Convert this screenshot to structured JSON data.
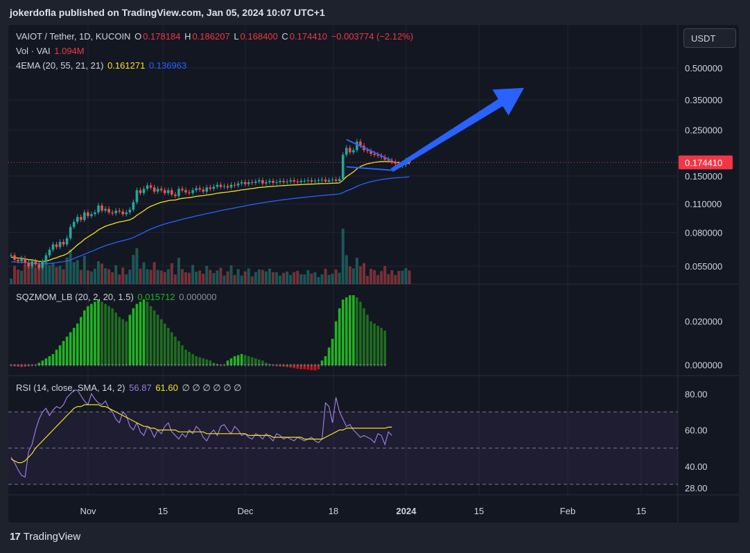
{
  "header": {
    "publisher_line": "jokerdofla published on TradingView.com, Jan 05, 2024 10:07 UTC+1"
  },
  "legend": {
    "symbol": "VAIOT / Tether, 1D, KUCOIN",
    "o_label": "O",
    "o_value": "0.178184",
    "h_label": "H",
    "h_value": "0.186207",
    "l_label": "L",
    "l_value": "0.168400",
    "c_label": "C",
    "c_value": "0.174410",
    "change": "−0.003774 (−2.12%)",
    "vol_label": "Vol · VAI",
    "vol_value": "1.094M",
    "ema_label": "4EMA (20, 55, 21, 21)",
    "ema_value_1": "0.161271",
    "ema_value_2": "0.136963",
    "sqz_label": "SQZMOM_LB (20, 2, 20, 1.5)",
    "sqz_value_1": "0.015712",
    "sqz_value_2": "0.000000",
    "rsi_label": "RSI (14, close, SMA, 14, 2)",
    "rsi_value_1": "56.87",
    "rsi_value_2": "61.60",
    "rsi_nulls": "∅ ∅ ∅ ∅ ∅ ∅"
  },
  "toolbar": {
    "currency": "USDT"
  },
  "footer": {
    "logo_mark": "17",
    "brand": "TradingView"
  },
  "colors": {
    "up": "#26a69a",
    "down": "#ef5350",
    "ema_fast": "#f7e31c",
    "ema_slow": "#2962ff",
    "sqz_green": "#1fb520",
    "sqz_dark_green": "#1f6e1f",
    "sqz_red": "#c61616",
    "rsi": "#9b7cdc",
    "rsi_ma": "#f7e31c",
    "arrow": "#2962ff",
    "last_price": "#f23645"
  },
  "chart_data": [
    {
      "type": "candlestick",
      "pane": "price",
      "scale": "log",
      "ylim": [
        0.045,
        0.62
      ],
      "y_ticks": [
        "0.500000",
        "0.350000",
        "0.250000",
        "0.150000",
        "0.110000",
        "0.080000",
        "0.055000"
      ],
      "y_tick_values": [
        0.5,
        0.35,
        0.25,
        0.15,
        0.11,
        0.08,
        0.055
      ],
      "last_price_label": "0.174410",
      "last_price": 0.17441,
      "x_ticks": [
        "Nov",
        "15",
        "Dec",
        "18",
        "2024",
        "15",
        "Feb",
        "15"
      ],
      "close": [
        0.062,
        0.059,
        0.058,
        0.06,
        0.057,
        0.055,
        0.058,
        0.056,
        0.054,
        0.058,
        0.062,
        0.066,
        0.07,
        0.068,
        0.072,
        0.07,
        0.075,
        0.085,
        0.09,
        0.095,
        0.092,
        0.1,
        0.096,
        0.098,
        0.1,
        0.108,
        0.102,
        0.104,
        0.1,
        0.099,
        0.102,
        0.101,
        0.098,
        0.1,
        0.103,
        0.112,
        0.128,
        0.124,
        0.13,
        0.135,
        0.132,
        0.126,
        0.13,
        0.128,
        0.124,
        0.128,
        0.122,
        0.12,
        0.13,
        0.128,
        0.125,
        0.124,
        0.128,
        0.131,
        0.129,
        0.126,
        0.132,
        0.13,
        0.133,
        0.136,
        0.133,
        0.134,
        0.132,
        0.136,
        0.135,
        0.138,
        0.14,
        0.137,
        0.14,
        0.139,
        0.141,
        0.143,
        0.138,
        0.14,
        0.142,
        0.139,
        0.14,
        0.142,
        0.14,
        0.141,
        0.143,
        0.141,
        0.14,
        0.142,
        0.142,
        0.143,
        0.141,
        0.142,
        0.143,
        0.144,
        0.141,
        0.143,
        0.144,
        0.142,
        0.145,
        0.19,
        0.205,
        0.195,
        0.2,
        0.22,
        0.21,
        0.2,
        0.198,
        0.192,
        0.19,
        0.188,
        0.185,
        0.18,
        0.178,
        0.175,
        0.172,
        0.168,
        0.17,
        0.178,
        0.174
      ],
      "ema_20_last": 0.161271,
      "ema_55_last": 0.136963,
      "trendline_upper": [
        [
          96,
          0.225
        ],
        [
          109,
          0.178
        ]
      ],
      "trendline_lower": [
        [
          96,
          0.166
        ],
        [
          109,
          0.16
        ]
      ],
      "forecast_arrow": [
        [
          109,
          0.16
        ],
        [
          125,
          0.4
        ]
      ]
    },
    {
      "type": "bar",
      "pane": "squeeze-momentum",
      "ylim": [
        -0.003,
        0.032
      ],
      "y_ticks": [
        "0.020000",
        "0.000000"
      ],
      "y_tick_values": [
        0.02,
        0.0
      ],
      "values": [
        -0.0004,
        -0.0006,
        -0.0008,
        -0.001,
        -0.0008,
        -0.0006,
        -0.0004,
        -0.0002,
        0.001,
        0.002,
        0.003,
        0.004,
        0.005,
        0.007,
        0.009,
        0.011,
        0.013,
        0.015,
        0.017,
        0.019,
        0.022,
        0.025,
        0.027,
        0.028,
        0.029,
        0.03,
        0.029,
        0.028,
        0.027,
        0.026,
        0.024,
        0.022,
        0.021,
        0.02,
        0.023,
        0.026,
        0.028,
        0.029,
        0.03,
        0.029,
        0.027,
        0.025,
        0.023,
        0.021,
        0.019,
        0.017,
        0.015,
        0.013,
        0.011,
        0.009,
        0.007,
        0.006,
        0.005,
        0.004,
        0.0035,
        0.003,
        0.0025,
        0.002,
        0.001,
        0.0005,
        -0.0002,
        -0.0003,
        0.002,
        0.003,
        0.004,
        0.0045,
        0.005,
        0.0045,
        0.004,
        0.0035,
        0.003,
        0.0025,
        0.002,
        0.001,
        0.0004,
        -0.0003,
        -0.0005,
        -0.0007,
        -0.0008,
        -0.001,
        -0.0012,
        -0.0015,
        -0.0018,
        -0.002,
        -0.002,
        -0.0022,
        -0.0024,
        -0.0025,
        -0.002,
        0.002,
        0.004,
        0.008,
        0.012,
        0.02,
        0.026,
        0.03,
        0.031,
        0.032,
        0.032,
        0.031,
        0.029,
        0.026,
        0.023,
        0.02,
        0.019,
        0.018,
        0.017,
        0.0157
      ]
    },
    {
      "type": "line",
      "pane": "rsi",
      "ylim": [
        25,
        87
      ],
      "y_ticks": [
        "80.00",
        "60.00",
        "40.00",
        "28.00"
      ],
      "y_tick_values": [
        80,
        60,
        40,
        28
      ],
      "band": [
        30,
        70
      ],
      "rsi": [
        45,
        42,
        38,
        35,
        34,
        48,
        52,
        60,
        66,
        70,
        72,
        68,
        71,
        73,
        72,
        74,
        78,
        80,
        82,
        82,
        79,
        76,
        74,
        80,
        77,
        75,
        74,
        76,
        72,
        70,
        66,
        64,
        70,
        68,
        62,
        60,
        64,
        59,
        57,
        62,
        60,
        56,
        60,
        58,
        62,
        64,
        59,
        57,
        55,
        58,
        56,
        60,
        58,
        62,
        60,
        56,
        54,
        58,
        60,
        57,
        62,
        63,
        60,
        58,
        62,
        60,
        57,
        58,
        56,
        55,
        58,
        57,
        55,
        58,
        56,
        54,
        58,
        57,
        55,
        56,
        55,
        54,
        56,
        55,
        54,
        55,
        56,
        54,
        53,
        55,
        75,
        73,
        64,
        78,
        70,
        66,
        62,
        63,
        60,
        58,
        56,
        57,
        56,
        55,
        53,
        58,
        57,
        52,
        59,
        57
      ],
      "rsi_ma": [
        44,
        43,
        42,
        42,
        43,
        45,
        47,
        50,
        52,
        54,
        56,
        58,
        60,
        62,
        64,
        66,
        68,
        70,
        72,
        73,
        73,
        74,
        74,
        74,
        74,
        74,
        73,
        73,
        72,
        71,
        70,
        69,
        68,
        67,
        66,
        65,
        64,
        63,
        62,
        62,
        61,
        61,
        60,
        60,
        60,
        60,
        60,
        60,
        59,
        59,
        59,
        59,
        59,
        59,
        59,
        59,
        58,
        58,
        58,
        58,
        58,
        58,
        58,
        58,
        58,
        58,
        58,
        58,
        57,
        57,
        57,
        57,
        57,
        57,
        57,
        56,
        56,
        56,
        56,
        56,
        56,
        56,
        56,
        56,
        55,
        55,
        55,
        55,
        55,
        55,
        56,
        57,
        58,
        59,
        60,
        60,
        61,
        61,
        61,
        61,
        61,
        61,
        61,
        61,
        61,
        61,
        61,
        61,
        61.6,
        61.6
      ]
    }
  ]
}
